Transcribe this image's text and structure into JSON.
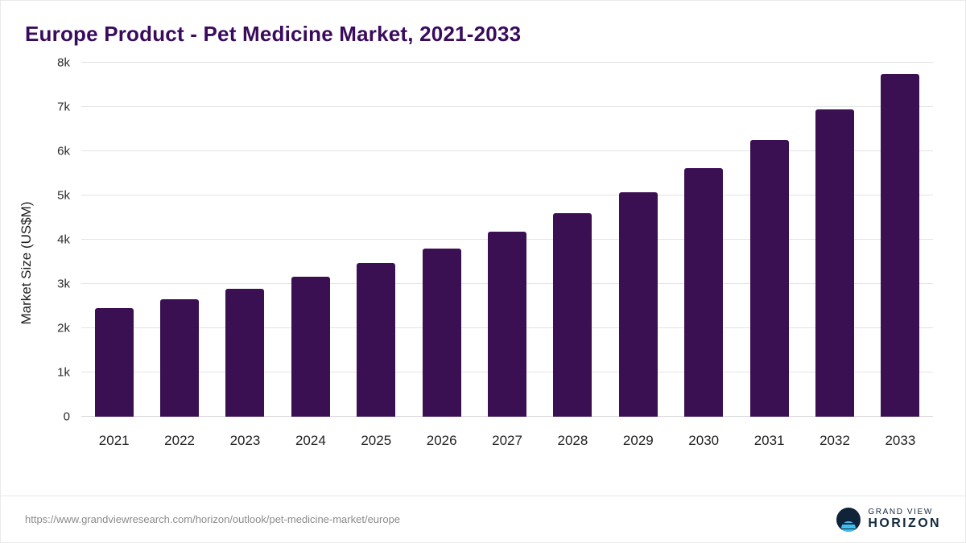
{
  "header": {
    "title": "Europe Product - Pet Medicine Market, 2021-2033"
  },
  "chart_data": {
    "type": "bar",
    "title": "Europe Product - Pet Medicine Market, 2021-2033",
    "xlabel": "",
    "ylabel": "Market Size (US$M)",
    "ylim": [
      0,
      8000
    ],
    "grid": true,
    "legend": false,
    "bar_color": "#3b1053",
    "categories": [
      "2021",
      "2022",
      "2023",
      "2024",
      "2025",
      "2026",
      "2027",
      "2028",
      "2029",
      "2030",
      "2031",
      "2032",
      "2033"
    ],
    "values": [
      2450,
      2650,
      2900,
      3170,
      3480,
      3800,
      4180,
      4600,
      5080,
      5620,
      6250,
      6950,
      7750
    ],
    "yticks": [
      {
        "value": 0,
        "label": "0"
      },
      {
        "value": 1000,
        "label": "1k"
      },
      {
        "value": 2000,
        "label": "2k"
      },
      {
        "value": 3000,
        "label": "3k"
      },
      {
        "value": 4000,
        "label": "4k"
      },
      {
        "value": 5000,
        "label": "5k"
      },
      {
        "value": 6000,
        "label": "6k"
      },
      {
        "value": 7000,
        "label": "7k"
      },
      {
        "value": 8000,
        "label": "8k"
      }
    ]
  },
  "footer": {
    "source_url": "https://www.grandviewresearch.com/horizon/outlook/pet-medicine-market/europe",
    "logo": {
      "line1": "GRAND VIEW",
      "line2": "HORIZON"
    }
  },
  "colors": {
    "title": "#3a0b5d",
    "bar": "#3b1053",
    "grid": "#e4e4e4",
    "axis_text": "#1f1f1f",
    "source_text": "#8b8b8b",
    "logo_dark": "#0f2438",
    "logo_blue": "#41c0ef"
  }
}
